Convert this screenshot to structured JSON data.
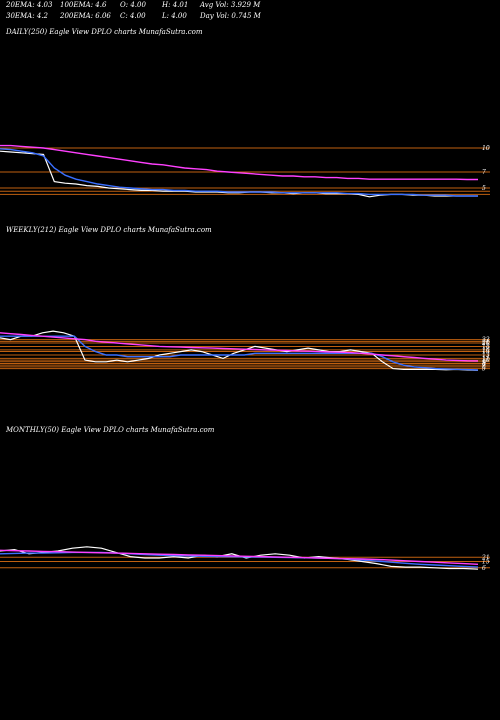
{
  "header": {
    "row1": [
      {
        "id": "ema20",
        "text": "20EMA: 4.03"
      },
      {
        "id": "ema100",
        "text": "100EMA: 4.6"
      },
      {
        "id": "open",
        "text": "O: 4.00"
      },
      {
        "id": "high",
        "text": "H: 4.01"
      },
      {
        "id": "avgvol",
        "text": "Avg Vol: 3.929 M"
      }
    ],
    "row2": [
      {
        "id": "ema30",
        "text": "30EMA: 4.2"
      },
      {
        "id": "ema200",
        "text": "200EMA: 6.06"
      },
      {
        "id": "close",
        "text": "C: 4.00"
      },
      {
        "id": "low",
        "text": "L: 4.00"
      },
      {
        "id": "dayvol",
        "text": "Day Vol: 0.745 M"
      }
    ]
  },
  "colors": {
    "background": "#000000",
    "price": "#ffffff",
    "ema_short": "#3a6fff",
    "ema_long": "#ff40ff",
    "level": "#c06010",
    "grid": "#5a3000"
  },
  "chart_data": [
    {
      "type": "line",
      "title": "DAILY(250) Eagle  View  DPLO charts MunafaSutra.com",
      "tick_labels": [
        "10",
        "7",
        "5"
      ],
      "levels": [
        10,
        7,
        5,
        4.6,
        4.2
      ],
      "ylim": [
        3.5,
        11
      ],
      "series": [
        {
          "role": "price",
          "color": "#ffffff",
          "values": [
            9.6,
            9.5,
            9.4,
            9.3,
            9.2,
            5.8,
            5.6,
            5.5,
            5.3,
            5.2,
            5.0,
            4.9,
            4.8,
            4.7,
            4.7,
            4.6,
            4.6,
            4.6,
            4.5,
            4.5,
            4.5,
            4.4,
            4.4,
            4.5,
            4.5,
            4.4,
            4.4,
            4.3,
            4.4,
            4.4,
            4.3,
            4.3,
            4.3,
            4.2,
            3.9,
            4.1,
            4.2,
            4.2,
            4.1,
            4.1,
            4.0,
            4.0,
            4.0,
            4.0,
            4.0
          ]
        },
        {
          "role": "ema_short",
          "color": "#3a6fff",
          "values": [
            9.9,
            9.8,
            9.6,
            9.4,
            9.0,
            7.5,
            6.6,
            6.1,
            5.8,
            5.5,
            5.3,
            5.1,
            5.0,
            4.9,
            4.8,
            4.8,
            4.7,
            4.7,
            4.6,
            4.6,
            4.6,
            4.5,
            4.5,
            4.5,
            4.5,
            4.5,
            4.4,
            4.4,
            4.4,
            4.4,
            4.4,
            4.4,
            4.3,
            4.3,
            4.2,
            4.2,
            4.2,
            4.2,
            4.2,
            4.1,
            4.1,
            4.1,
            4.0,
            4.0,
            4.0
          ]
        },
        {
          "role": "ema_long",
          "color": "#ff40ff",
          "values": [
            10.3,
            10.3,
            10.2,
            10.1,
            10.0,
            9.8,
            9.6,
            9.4,
            9.2,
            9.0,
            8.8,
            8.6,
            8.4,
            8.2,
            8.0,
            7.9,
            7.7,
            7.5,
            7.4,
            7.3,
            7.1,
            7.0,
            6.9,
            6.8,
            6.7,
            6.6,
            6.5,
            6.5,
            6.4,
            6.4,
            6.3,
            6.3,
            6.2,
            6.2,
            6.1,
            6.1,
            6.1,
            6.1,
            6.1,
            6.1,
            6.1,
            6.1,
            6.1,
            6.06,
            6.06
          ]
        }
      ]
    },
    {
      "type": "line",
      "title": "WEEKLY(212) Eagle  View  DPLO charts MunafaSutra.com",
      "tick_labels": [
        "22",
        "21",
        "20",
        "18",
        "16",
        "15",
        "13",
        "11",
        "10",
        "9",
        "8",
        "7",
        "6",
        "5"
      ],
      "levels": [
        22,
        21,
        20,
        18,
        16,
        15,
        13,
        11,
        10,
        9,
        8,
        7,
        6,
        5
      ],
      "ylim": [
        3,
        30
      ],
      "series": [
        {
          "role": "price",
          "color": "#ffffff",
          "values": [
            23,
            22,
            24,
            24,
            26,
            27,
            26,
            24,
            10,
            9,
            9,
            10,
            9,
            10,
            11,
            13,
            14,
            15,
            16,
            15,
            13,
            11,
            14,
            16,
            18,
            17,
            16,
            15,
            16,
            17,
            16,
            15,
            15,
            16,
            15,
            14,
            9,
            5,
            4.5,
            4.5,
            4.5,
            4.5,
            4.3,
            4.5,
            4.2,
            4.0
          ]
        },
        {
          "role": "ema_short",
          "color": "#3a6fff",
          "values": [
            24,
            24,
            24,
            24,
            24,
            24,
            24,
            24,
            18,
            15,
            13,
            13,
            12,
            12,
            12,
            12,
            12,
            13,
            13,
            13,
            13,
            13,
            13,
            13,
            14,
            14,
            14,
            14,
            14,
            14,
            14,
            14,
            14,
            14,
            14,
            14,
            12,
            9,
            7,
            6,
            5.5,
            5,
            4.8,
            4.6,
            4.4,
            4.2
          ]
        },
        {
          "role": "ema_long",
          "color": "#ff40ff",
          "values": [
            26,
            25.5,
            25,
            24.5,
            24,
            23.5,
            23,
            22.5,
            22,
            21,
            20.5,
            20,
            19.5,
            19,
            18.5,
            18,
            17.8,
            17.6,
            17.4,
            17.2,
            17,
            16.8,
            16.6,
            16.4,
            16.2,
            16,
            15.8,
            15.6,
            15.4,
            15.2,
            15,
            14.8,
            14.6,
            14.4,
            14,
            13.5,
            13,
            12.5,
            12,
            11.5,
            11,
            10.5,
            10,
            9.8,
            9.6,
            9.5
          ]
        }
      ]
    },
    {
      "type": "line",
      "title": "MONTHLY(50) Eagle  View  DPLO charts MunafaSutra.com",
      "tick_labels": [
        "21",
        "15",
        "6"
      ],
      "levels": [
        21,
        15,
        6
      ],
      "ylim": [
        0,
        60
      ],
      "series": [
        {
          "role": "price",
          "color": "#ffffff",
          "values": [
            30,
            32,
            26,
            28,
            30,
            34,
            36,
            34,
            28,
            22,
            20,
            20,
            22,
            20,
            24,
            22,
            26,
            20,
            24,
            26,
            24,
            20,
            22,
            20,
            18,
            15,
            12,
            8,
            7,
            7,
            6,
            5,
            5,
            4
          ]
        },
        {
          "role": "ema_short",
          "color": "#3a6fff",
          "values": [
            26,
            26.5,
            27,
            27,
            27.5,
            28,
            28,
            28,
            27,
            26,
            25,
            24,
            23.5,
            23,
            22.5,
            22,
            21.8,
            21.5,
            21.3,
            21,
            20.7,
            20.3,
            20,
            19.5,
            18.5,
            17,
            15.5,
            14,
            12.5,
            11,
            10,
            9,
            8,
            7
          ]
        },
        {
          "role": "ema_long",
          "color": "#ff40ff",
          "values": [
            31,
            30.5,
            30,
            29.5,
            29,
            28.5,
            28,
            27.5,
            27,
            26.5,
            26,
            25.5,
            25,
            24.5,
            24,
            23.5,
            23,
            22.5,
            22,
            21.5,
            21,
            20.5,
            20,
            19.5,
            19,
            18.5,
            18,
            17,
            16,
            15,
            14,
            13,
            12,
            11
          ]
        }
      ]
    }
  ]
}
